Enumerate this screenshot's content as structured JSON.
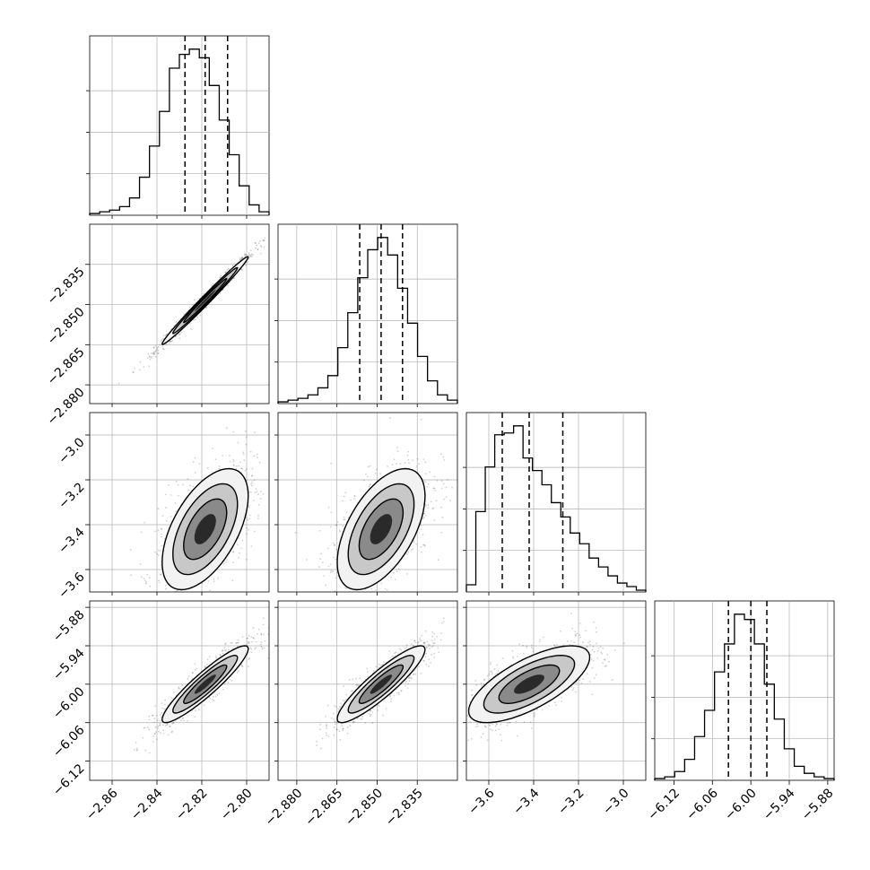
{
  "chart_data": {
    "type": "corner",
    "grid": true,
    "colors": {
      "hist": "#000000",
      "contour": "#000000",
      "scatter": "#000000",
      "grid": "#b0b0b0"
    },
    "parameters": [
      {
        "key": "p1",
        "range": [
          -2.87,
          -2.79
        ],
        "median": -2.8185,
        "q16": -2.8275,
        "q84": -2.8085,
        "ticks": [
          "−2.86",
          "−2.84",
          "−2.82",
          "−2.80"
        ],
        "tick_values": [
          -2.86,
          -2.84,
          -2.82,
          -2.8
        ]
      },
      {
        "key": "p2",
        "range": [
          -2.887,
          -2.82
        ],
        "median": -2.8485,
        "q16": -2.8565,
        "q84": -2.8405,
        "ticks": [
          "−2.880",
          "−2.865",
          "−2.850",
          "−2.835"
        ],
        "tick_values": [
          -2.88,
          -2.865,
          -2.85,
          -2.835
        ]
      },
      {
        "key": "p3",
        "range": [
          -3.7,
          -2.9
        ],
        "median": -3.42,
        "q16": -3.54,
        "q84": -3.27,
        "ticks": [
          "−3.6",
          "−3.4",
          "−3.2",
          "−3.0"
        ],
        "tick_values": [
          -3.6,
          -3.4,
          -3.2,
          -3.0
        ]
      },
      {
        "key": "p4",
        "range": [
          -6.15,
          -5.87
        ],
        "median": -6.0,
        "q16": -6.035,
        "q84": -5.975,
        "ticks": [
          "−6.12",
          "−6.06",
          "−6.00",
          "−5.94",
          "−5.88"
        ],
        "tick_values": [
          -6.12,
          -6.06,
          -6.0,
          -5.94,
          -5.88
        ]
      }
    ],
    "histograms": [
      {
        "param": 0,
        "counts": [
          1,
          2,
          3,
          5,
          10,
          22,
          40,
          60,
          85,
          93,
          96,
          91,
          75,
          55,
          35,
          17,
          6,
          2
        ]
      },
      {
        "param": 1,
        "counts": [
          1,
          2,
          3,
          5,
          9,
          16,
          32,
          52,
          72,
          88,
          95,
          85,
          66,
          46,
          27,
          13,
          5,
          2
        ]
      },
      {
        "param": 2,
        "counts": [
          4,
          45,
          70,
          88,
          89,
          93,
          75,
          68,
          60,
          50,
          42,
          33,
          27,
          19,
          14,
          9,
          5,
          3,
          1
        ]
      },
      {
        "param": 3,
        "counts": [
          1,
          2,
          5,
          12,
          25,
          40,
          62,
          78,
          95,
          92,
          78,
          55,
          35,
          18,
          8,
          4,
          2,
          1
        ]
      }
    ],
    "pairs": [
      {
        "x": 0,
        "y": 1,
        "center": [
          -2.8185,
          -2.8485
        ],
        "sd": [
          0.0096,
          0.0082
        ],
        "rho": 0.99
      },
      {
        "x": 0,
        "y": 2,
        "center": [
          -2.8185,
          -3.42
        ],
        "sd": [
          0.0096,
          0.135
        ],
        "rho": 0.55
      },
      {
        "x": 1,
        "y": 2,
        "center": [
          -2.8485,
          -3.42
        ],
        "sd": [
          0.0082,
          0.135
        ],
        "rho": 0.55
      },
      {
        "x": 0,
        "y": 3,
        "center": [
          -2.8185,
          -6.0
        ],
        "sd": [
          0.0096,
          0.03
        ],
        "rho": 0.92
      },
      {
        "x": 1,
        "y": 3,
        "center": [
          -2.8485,
          -6.0
        ],
        "sd": [
          0.0082,
          0.03
        ],
        "rho": 0.9
      },
      {
        "x": 2,
        "y": 3,
        "center": [
          -3.42,
          -6.0
        ],
        "sd": [
          0.135,
          0.03
        ],
        "rho": 0.7
      }
    ]
  }
}
